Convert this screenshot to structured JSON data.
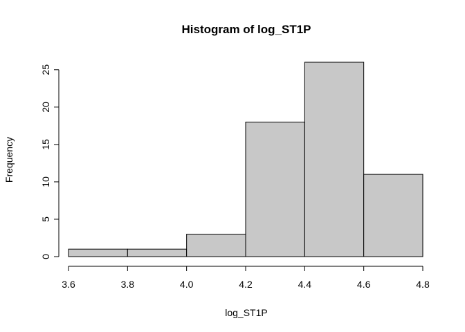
{
  "chart_data": {
    "type": "bar",
    "title": "Histogram of log_ST1P",
    "xlabel": "log_ST1P",
    "ylabel": "Frequency",
    "bins": [
      {
        "from": 3.6,
        "to": 3.8,
        "count": 1
      },
      {
        "from": 3.8,
        "to": 4.0,
        "count": 1
      },
      {
        "from": 4.0,
        "to": 4.2,
        "count": 3
      },
      {
        "from": 4.2,
        "to": 4.4,
        "count": 18
      },
      {
        "from": 4.4,
        "to": 4.6,
        "count": 26
      },
      {
        "from": 4.6,
        "to": 4.8,
        "count": 11
      }
    ],
    "x_ticks": [
      "3.6",
      "3.8",
      "4.0",
      "4.2",
      "4.4",
      "4.6",
      "4.8"
    ],
    "y_ticks": [
      "0",
      "5",
      "10",
      "15",
      "20",
      "25"
    ],
    "xlim": [
      3.6,
      4.8
    ],
    "ylim": [
      0,
      26
    ],
    "bar_color": "#c8c8c8",
    "grid": false
  }
}
